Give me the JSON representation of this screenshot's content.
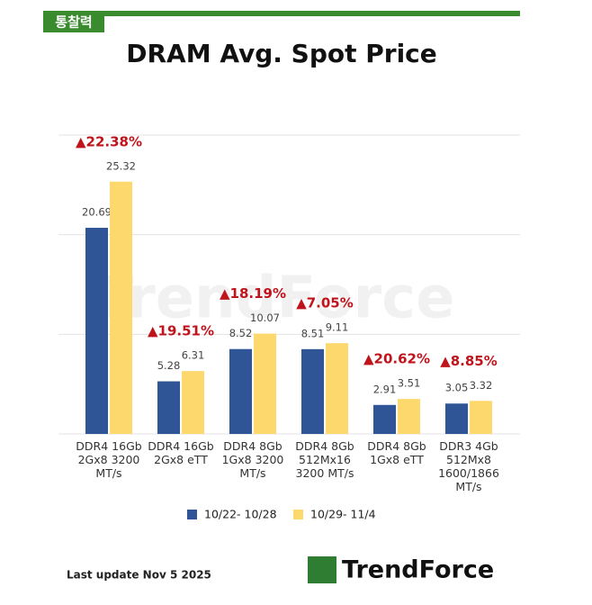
{
  "header": {
    "tag": "통찰력"
  },
  "chart_data": {
    "type": "bar",
    "title": "DRAM Avg. Spot Price",
    "categories": [
      "DDR4 16Gb\n2Gx8 3200\nMT/s",
      "DDR4 16Gb\n2Gx8 eTT",
      "DDR4 8Gb\n1Gx8 3200\nMT/s",
      "DDR4 8Gb\n512Mx16\n3200 MT/s",
      "DDR4 8Gb\n1Gx8 eTT",
      "DDR3 4Gb\n512Mx8\n1600/1866\nMT/s"
    ],
    "series": [
      {
        "name": "10/22- 10/28",
        "color": "#2f5597",
        "values": [
          20.69,
          5.28,
          8.52,
          8.51,
          2.91,
          3.05
        ]
      },
      {
        "name": "10/29- 11/4",
        "color": "#fdd86c",
        "values": [
          25.32,
          6.31,
          10.07,
          9.11,
          3.51,
          3.32
        ]
      }
    ],
    "annotations": [
      "▲22.38%",
      "▲19.51%",
      "▲18.19%",
      "▲7.05%",
      "▲20.62%",
      "▲8.85%"
    ],
    "ylim": [
      0,
      30
    ],
    "yticks": [
      0,
      10,
      20,
      30
    ],
    "grid": true,
    "legend": "bottom"
  },
  "watermark": "TrendForce",
  "footer": {
    "note": "Last update Nov 5  2025",
    "logo": "TrendForce"
  }
}
